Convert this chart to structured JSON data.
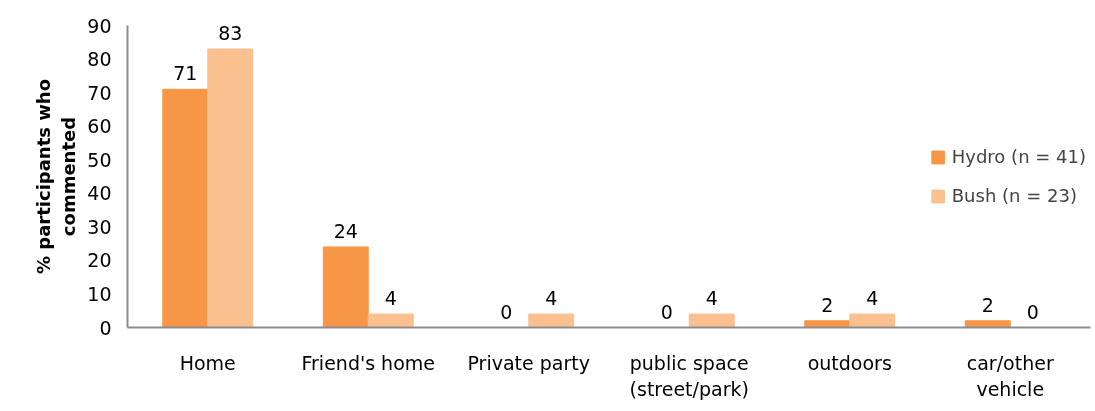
{
  "chart_data": {
    "type": "bar",
    "ylabel": "% participants who commented",
    "categories": [
      "Home",
      "Friend's home",
      "Private party",
      "public space (street/park)",
      "outdoors",
      "car/other vehicle"
    ],
    "series": [
      {
        "name": "Hydro (n = 41)",
        "color": "#f79646",
        "values": [
          71,
          24,
          0,
          0,
          2,
          2
        ]
      },
      {
        "name": "Bush (n = 23)",
        "color": "#fac090",
        "values": [
          83,
          4,
          4,
          4,
          4,
          0
        ]
      }
    ],
    "ylim": [
      0,
      90
    ],
    "yticks": [
      0,
      10,
      20,
      30,
      40,
      50,
      60,
      70,
      80,
      90
    ],
    "data_labels": true,
    "legend": "right",
    "grid": false
  }
}
